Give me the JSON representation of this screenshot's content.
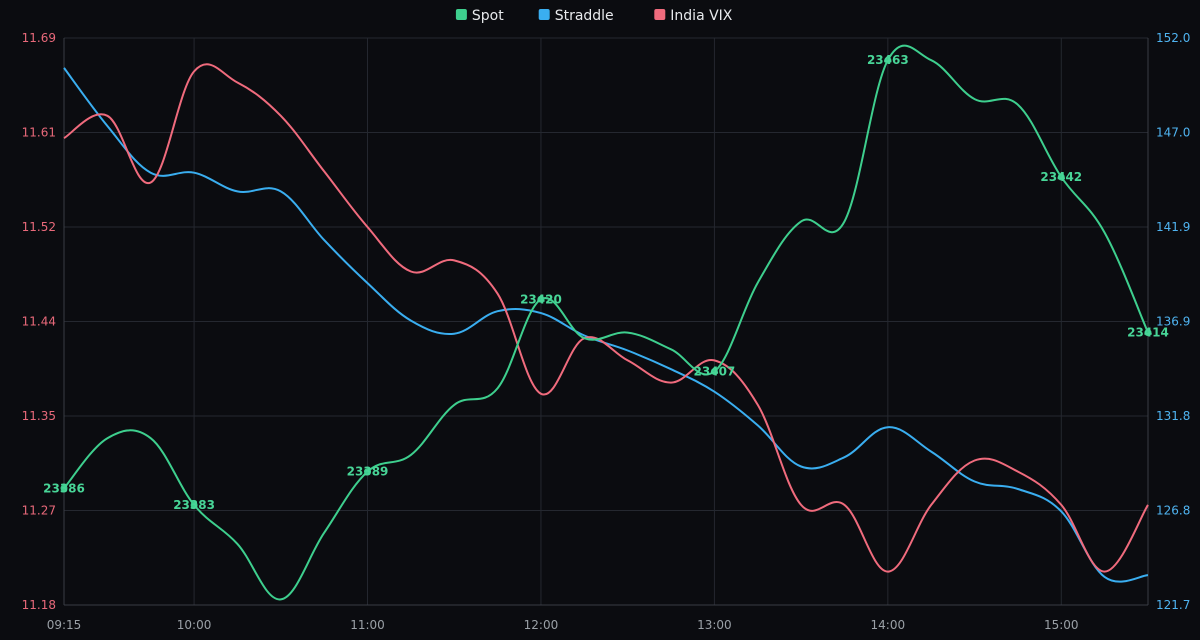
{
  "chart_data": {
    "type": "line",
    "legend_position": "top-center",
    "grid": true,
    "x": [
      "09:15",
      "09:30",
      "09:45",
      "10:00",
      "10:15",
      "10:30",
      "10:45",
      "11:00",
      "11:15",
      "11:30",
      "11:45",
      "12:00",
      "12:15",
      "12:30",
      "12:45",
      "13:00",
      "13:15",
      "13:30",
      "13:45",
      "14:00",
      "14:15",
      "14:30",
      "14:45",
      "15:00",
      "15:15",
      "15:30"
    ],
    "x_ticks": [
      "09:15",
      "10:00",
      "11:00",
      "12:00",
      "13:00",
      "14:00",
      "15:00"
    ],
    "y_left": {
      "ticks": [
        "11.18",
        "11.27",
        "11.35",
        "11.44",
        "11.52",
        "11.61",
        "11.69"
      ],
      "range": [
        11.18,
        11.69
      ]
    },
    "y_right": {
      "ticks": [
        "121.7",
        "126.8",
        "131.8",
        "136.9",
        "141.9",
        "147.0",
        "152.0"
      ],
      "range": [
        121.7,
        152.0
      ]
    },
    "series": [
      {
        "name": "Spot",
        "color": "#3ecf8e",
        "axis": "spot",
        "range": [
          23365,
          23467
        ],
        "values": [
          23386,
          23395,
          23395,
          23383,
          23376,
          23366,
          23378,
          23389,
          23392,
          23401,
          23404,
          23420,
          23413,
          23414,
          23411,
          23407,
          23423,
          23434,
          23434,
          23463,
          23463,
          23456,
          23455,
          23442,
          23432,
          23414
        ],
        "labels": [
          {
            "x": "09:15",
            "text": "23386"
          },
          {
            "x": "10:00",
            "text": "23383"
          },
          {
            "x": "11:00",
            "text": "23389"
          },
          {
            "x": "12:00",
            "text": "23420"
          },
          {
            "x": "13:00",
            "text": "23407"
          },
          {
            "x": "14:00",
            "text": "23463"
          },
          {
            "x": "15:00",
            "text": "23442"
          },
          {
            "x": "15:30",
            "text": "23414"
          }
        ]
      },
      {
        "name": "Straddle",
        "color": "#3aaef0",
        "axis": "right",
        "values": [
          150.4,
          147.3,
          144.8,
          144.8,
          143.8,
          143.8,
          141.2,
          138.9,
          136.9,
          136.2,
          137.4,
          137.3,
          136.1,
          135.3,
          134.3,
          133.1,
          131.3,
          129.1,
          129.6,
          131.2,
          129.9,
          128.3,
          127.9,
          126.7,
          123.2,
          123.3
        ],
        "color_hex": "#3aaef0"
      },
      {
        "name": "India VIX",
        "color": "#f06b7d",
        "axis": "left",
        "values": [
          11.6,
          11.62,
          11.56,
          11.66,
          11.65,
          11.62,
          11.57,
          11.52,
          11.48,
          11.49,
          11.46,
          11.37,
          11.42,
          11.4,
          11.38,
          11.4,
          11.36,
          11.27,
          11.27,
          11.21,
          11.27,
          11.31,
          11.3,
          11.27,
          11.21,
          11.27
        ],
        "color_hex": "#f06b7d"
      }
    ]
  }
}
